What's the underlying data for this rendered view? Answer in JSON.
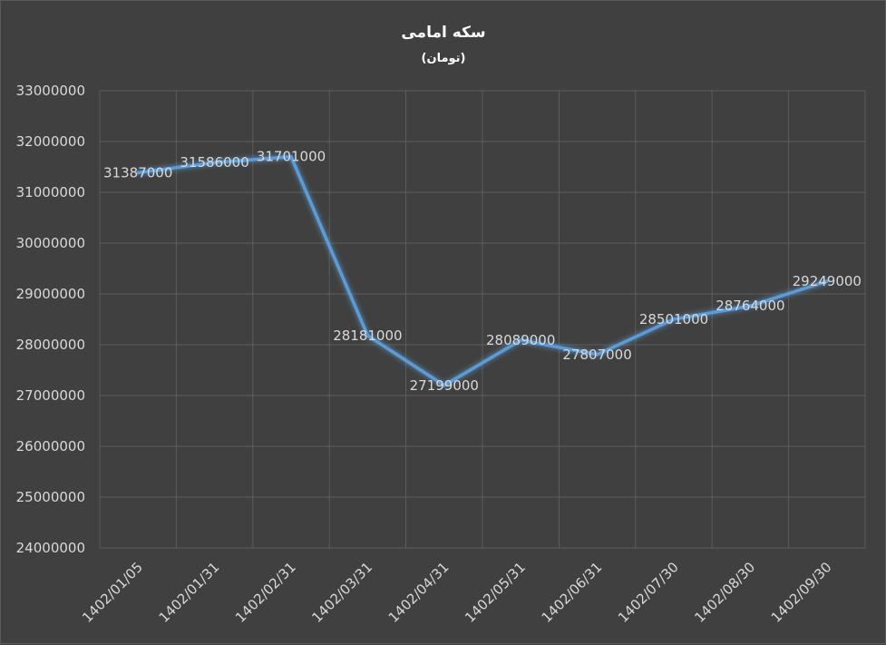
{
  "chart_data": {
    "type": "line",
    "title": "سکه امامی",
    "subtitle": "(تومان)",
    "xlabel": "",
    "ylabel": "",
    "categories": [
      "1402/01/05",
      "1402/01/31",
      "1402/02/31",
      "1402/03/31",
      "1402/04/31",
      "1402/05/31",
      "1402/06/31",
      "1402/07/30",
      "1402/08/30",
      "1402/09/30"
    ],
    "series": [
      {
        "values": [
          31387000,
          31586000,
          31701000,
          28181000,
          27199000,
          28089000,
          27807000,
          28501000,
          28764000,
          29249000
        ],
        "color": "#5b9bd5"
      }
    ],
    "ylim": [
      24000000,
      33000000
    ],
    "yticks": [
      "24000000",
      "25000000",
      "26000000",
      "27000000",
      "28000000",
      "29000000",
      "30000000",
      "31000000",
      "32000000",
      "33000000"
    ],
    "data_labels": [
      "31387000",
      "31586000",
      "31701000",
      "28181000",
      "27199000",
      "28089000",
      "27807000",
      "28501000",
      "28764000",
      "29249000"
    ],
    "grid": true,
    "legend": "none"
  },
  "colors": {
    "background": "#404040",
    "grid": "#5c5c5c",
    "text": "#d9d9d9",
    "line": "#5b9bd5"
  }
}
